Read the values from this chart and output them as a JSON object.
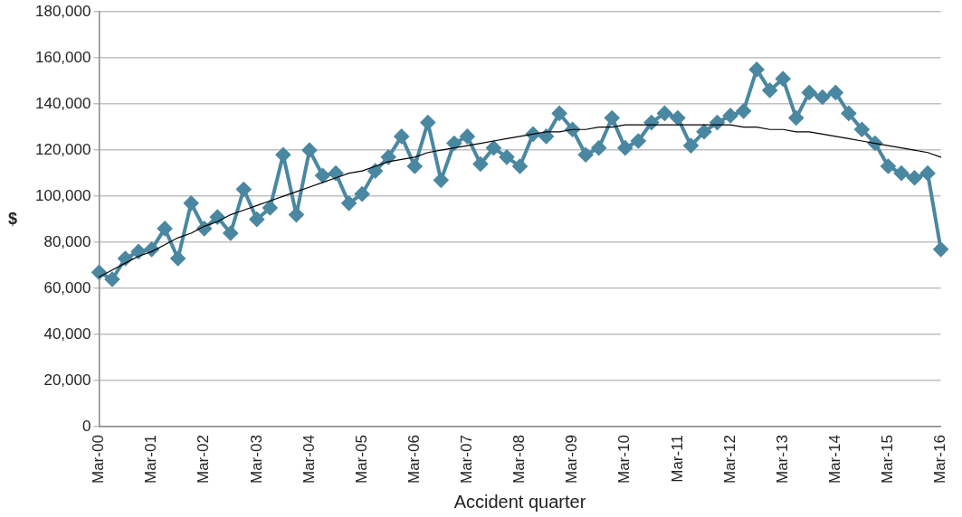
{
  "chart_data": {
    "type": "line",
    "xlabel": "Accident quarter",
    "ylabel": "$",
    "categories": [
      "Mar-00",
      null,
      null,
      null,
      "Mar-01",
      null,
      null,
      null,
      "Mar-02",
      null,
      null,
      null,
      "Mar-03",
      null,
      null,
      null,
      "Mar-04",
      null,
      null,
      null,
      "Mar-05",
      null,
      null,
      null,
      "Mar-06",
      null,
      null,
      null,
      "Mar-07",
      null,
      null,
      null,
      "Mar-08",
      null,
      null,
      null,
      "Mar-09",
      null,
      null,
      null,
      "Mar-10",
      null,
      null,
      null,
      "Mar-11",
      null,
      null,
      null,
      "Mar-12",
      null,
      null,
      null,
      "Mar-13",
      null,
      null,
      null,
      "Mar-14",
      null,
      null,
      null,
      "Mar-15",
      null,
      null,
      null,
      "Mar-16"
    ],
    "series": [
      {
        "color": "#4a87a1",
        "marker": "diamond",
        "values": [
          67000,
          64000,
          73000,
          76000,
          77000,
          86000,
          73000,
          97000,
          86000,
          91000,
          84000,
          103000,
          90000,
          95000,
          118000,
          92000,
          120000,
          109000,
          110000,
          97000,
          101000,
          111000,
          117000,
          126000,
          113000,
          132000,
          107000,
          123000,
          126000,
          114000,
          121000,
          117000,
          113000,
          127000,
          126000,
          136000,
          129000,
          118000,
          121000,
          134000,
          121000,
          124000,
          132000,
          136000,
          134000,
          122000,
          128000,
          132000,
          135000,
          137000,
          155000,
          146000,
          151000,
          134000,
          145000,
          143000,
          145000,
          136000,
          129000,
          123000,
          113000,
          110000,
          108000,
          110000,
          77000
        ]
      },
      {
        "type": "line",
        "color": "#000000",
        "marker": "none",
        "values": [
          65000,
          68000,
          71000,
          74000,
          76000,
          79000,
          82000,
          84000,
          87000,
          89000,
          92000,
          94000,
          96000,
          98000,
          100000,
          102000,
          104000,
          106000,
          108000,
          110000,
          111000,
          113000,
          115000,
          116000,
          117000,
          119000,
          120000,
          121000,
          122000,
          123000,
          124000,
          125000,
          126000,
          127000,
          128000,
          128000,
          129000,
          129000,
          130000,
          130000,
          131000,
          131000,
          131000,
          131000,
          131000,
          131000,
          131000,
          131000,
          131000,
          130000,
          130000,
          129000,
          129000,
          128000,
          128000,
          127000,
          126000,
          125000,
          124000,
          123000,
          122000,
          121000,
          120000,
          119000,
          117000
        ]
      }
    ],
    "ylim": [
      0,
      180000
    ],
    "yticks": [
      {
        "value": 0,
        "label": "0"
      },
      {
        "value": 20000,
        "label": "20,000"
      },
      {
        "value": 40000,
        "label": "40,000"
      },
      {
        "value": 60000,
        "label": "60,000"
      },
      {
        "value": 80000,
        "label": "80,000"
      },
      {
        "value": 100000,
        "label": "100,000"
      },
      {
        "value": 120000,
        "label": "120,000"
      },
      {
        "value": 140000,
        "label": "140,000"
      },
      {
        "value": 160000,
        "label": "160,000"
      },
      {
        "value": 180000,
        "label": "180,000"
      }
    ],
    "grid": "y",
    "legend": false
  }
}
